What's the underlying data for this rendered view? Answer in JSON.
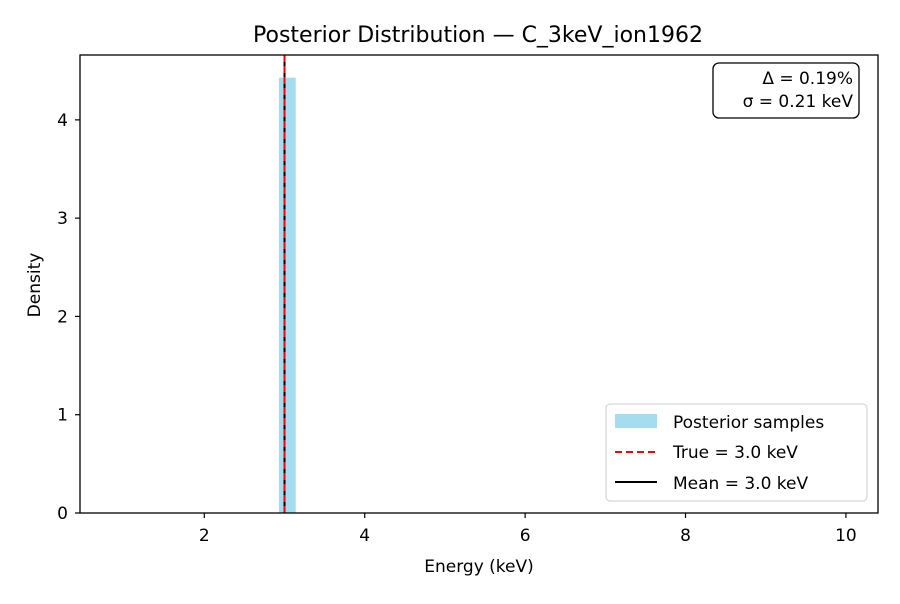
{
  "chart_data": {
    "type": "bar",
    "title": "Posterior Distribution — C_3keV_ion1962",
    "xlabel": "Energy (keV)",
    "ylabel": "Density",
    "xlim": [
      0.45,
      10.4
    ],
    "ylim": [
      0,
      4.66
    ],
    "xticks": [
      2,
      4,
      6,
      8,
      10
    ],
    "yticks": [
      0,
      1,
      2,
      3,
      4
    ],
    "grid": false,
    "legend_position": "lower right",
    "histogram": {
      "name": "Posterior samples",
      "color": "#a6dcef",
      "bins": [
        {
          "x0": 2.93,
          "x1": 3.03,
          "density": 4.43
        },
        {
          "x0": 3.03,
          "x1": 3.14,
          "density": 4.43
        }
      ]
    },
    "lines": [
      {
        "name": "True = 3.0 keV",
        "x": 3.0,
        "color": "#ff0000",
        "style": "dashed"
      },
      {
        "name": "Mean = 3.0 keV",
        "x": 3.0,
        "color": "#000000",
        "style": "solid"
      }
    ],
    "annotation": [
      "Δ = 0.19%",
      "σ = 0.21 keV"
    ]
  }
}
